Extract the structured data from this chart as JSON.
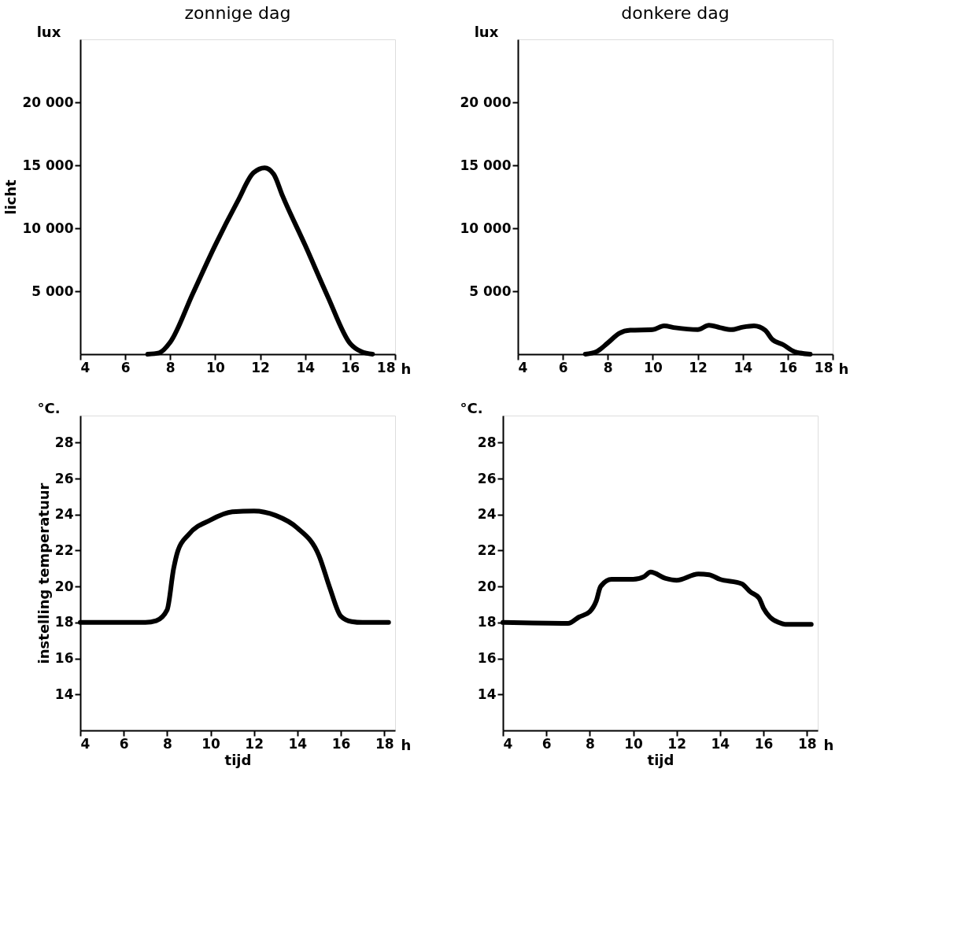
{
  "chart_data": [
    {
      "type": "line",
      "title": "zonnige dag",
      "ylabel": "licht",
      "annotations": [
        "lux",
        "h"
      ],
      "x": [
        7,
        7.5,
        8,
        9,
        10,
        11,
        11.7,
        12.2,
        12.6,
        13,
        14,
        15,
        16,
        16.5,
        17
      ],
      "series": [
        {
          "color": "#000000",
          "values": [
            0,
            100,
            950,
            4800,
            8650,
            12150,
            14400,
            14800,
            14300,
            12550,
            8650,
            4600,
            850,
            200,
            0
          ]
        }
      ],
      "xlim": [
        4,
        18
      ],
      "xticks": [
        4,
        6,
        8,
        10,
        12,
        14,
        16,
        18
      ],
      "ylim": [
        0,
        25000
      ],
      "yticks": [
        {
          "value": 5000,
          "label": "5 000"
        },
        {
          "value": 10000,
          "label": "10 000"
        },
        {
          "value": 15000,
          "label": "15 000"
        },
        {
          "value": 20000,
          "label": "20 000"
        }
      ]
    },
    {
      "type": "line",
      "title": "donkere dag",
      "annotations": [
        "lux",
        "h"
      ],
      "x": [
        7,
        7.5,
        8,
        8.5,
        9,
        10,
        10.5,
        11,
        12,
        12.5,
        13,
        13.5,
        14,
        14.5,
        15,
        15.3,
        15.8,
        16.3,
        17
      ],
      "series": [
        {
          "color": "#000000",
          "values": [
            0,
            200,
            900,
            1650,
            1900,
            1950,
            2250,
            2100,
            1950,
            2300,
            2100,
            1950,
            2150,
            2250,
            1900,
            1200,
            750,
            200,
            0
          ]
        }
      ],
      "xlim": [
        4,
        18
      ],
      "xticks": [
        4,
        6,
        8,
        10,
        12,
        14,
        16,
        18
      ],
      "ylim": [
        0,
        25000
      ],
      "yticks": [
        {
          "value": 5000,
          "label": "5 000"
        },
        {
          "value": 10000,
          "label": "10 000"
        },
        {
          "value": 15000,
          "label": "15 000"
        },
        {
          "value": 20000,
          "label": "20 000"
        }
      ]
    },
    {
      "type": "line",
      "xlabel": "tijd",
      "ylabel": "instelling temperatuur",
      "annotations": [
        "°C.",
        "h"
      ],
      "x": [
        4,
        7,
        7.5,
        8,
        8.3,
        8.5,
        9,
        10,
        11,
        12,
        13,
        14,
        15,
        15.5,
        16,
        16.5,
        17,
        18.2
      ],
      "series": [
        {
          "color": "#000000",
          "values": [
            18,
            18,
            18.1,
            18.7,
            21.0,
            22.0,
            22.9,
            23.7,
            24.15,
            24.2,
            23.95,
            23.25,
            21.7,
            19.9,
            18.35,
            18.05,
            18,
            18
          ]
        }
      ],
      "xlim": [
        4,
        18.5
      ],
      "xticks": [
        4,
        6,
        8,
        10,
        12,
        14,
        16,
        18
      ],
      "ylim": [
        12,
        29.5
      ],
      "yticks": [
        14,
        16,
        18,
        20,
        22,
        24,
        26,
        28
      ]
    },
    {
      "type": "line",
      "xlabel": "tijd",
      "annotations": [
        "°C.",
        "h"
      ],
      "x": [
        4,
        7,
        7.5,
        8,
        8.3,
        8.5,
        9,
        10,
        10.5,
        10.8,
        11.5,
        12,
        13,
        13.5,
        14,
        15,
        15.4,
        15.8,
        16,
        16.3,
        16.7,
        17,
        18.2
      ],
      "series": [
        {
          "color": "#000000",
          "values": [
            18,
            17.95,
            18.3,
            18.6,
            19.2,
            20.0,
            20.4,
            20.4,
            20.55,
            20.8,
            20.45,
            20.35,
            20.7,
            20.65,
            20.4,
            20.15,
            19.7,
            19.35,
            18.8,
            18.3,
            18.0,
            17.9,
            17.9
          ]
        }
      ],
      "xlim": [
        4,
        18.5
      ],
      "xticks": [
        4,
        6,
        8,
        10,
        12,
        14,
        16,
        18
      ],
      "ylim": [
        12,
        29.5
      ],
      "yticks": [
        14,
        16,
        18,
        20,
        22,
        24,
        26,
        28
      ]
    }
  ]
}
